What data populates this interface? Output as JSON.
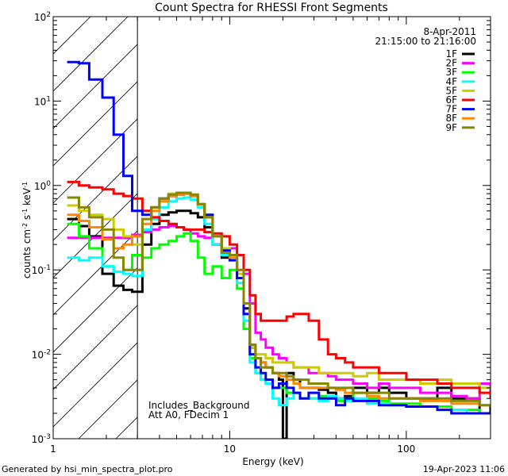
{
  "chart_data": {
    "type": "line",
    "title": "Count Spectra for RHESSI Front Segments",
    "xlabel": "Energy (keV)",
    "ylabel": "counts cm-2 s-1 keV-1",
    "xscale": "log",
    "yscale": "log",
    "xlim": [
      1,
      300
    ],
    "ylim": [
      0.001,
      100
    ],
    "x_ticks": [
      {
        "value": 1,
        "label": "1"
      },
      {
        "value": 10,
        "label": "10"
      },
      {
        "value": 100,
        "label": "100"
      }
    ],
    "y_ticks": [
      {
        "value": 0.001,
        "base": "10",
        "exp": "-3"
      },
      {
        "value": 0.01,
        "base": "10",
        "exp": "-2"
      },
      {
        "value": 0.1,
        "base": "10",
        "exp": "-1"
      },
      {
        "value": 1,
        "base": "10",
        "exp": "0"
      },
      {
        "value": 10,
        "base": "10",
        "exp": "1"
      },
      {
        "value": 100,
        "base": "10",
        "exp": "2"
      }
    ],
    "hatched_region": {
      "x_min": 1,
      "x_max": 3,
      "note": "excluded energy range (diagonal hatching)"
    },
    "legend": {
      "location": "top-right",
      "date": "8-Apr-2011",
      "time_range": "21:15:00 to 21:16:00"
    },
    "annotations": [
      "Includes_Background",
      "Att A0, FDecim 1"
    ],
    "series": [
      {
        "name": "1F",
        "color": "#000000",
        "style": "step",
        "x": [
          1.2,
          1.4,
          1.6,
          1.9,
          2.2,
          2.5,
          2.8,
          3.2,
          3.6,
          4.0,
          4.5,
          5.0,
          5.5,
          6.0,
          6.6,
          7.2,
          8.0,
          9.0,
          10.0,
          11.0,
          12.0,
          13.0,
          14.0,
          15.0,
          16.0,
          17.5,
          19.0,
          20.0,
          21.0,
          23.0,
          25.0,
          28.0,
          32.0,
          36.0,
          40.0,
          45.0,
          50.0,
          60.0,
          70.0,
          80.0,
          100.0,
          120.0,
          150.0,
          180.0,
          220.0,
          260.0,
          300.0
        ],
        "y": [
          0.4,
          0.33,
          0.25,
          0.09,
          0.065,
          0.058,
          0.055,
          0.2,
          0.35,
          0.45,
          0.48,
          0.5,
          0.5,
          0.47,
          0.42,
          0.32,
          0.2,
          0.14,
          0.15,
          0.08,
          0.035,
          0.012,
          0.009,
          0.008,
          0.007,
          0.006,
          0.005,
          0.001,
          0.006,
          0.005,
          0.004,
          0.004,
          0.0038,
          0.0035,
          0.003,
          0.0032,
          0.004,
          0.0035,
          0.004,
          0.0035,
          0.003,
          0.003,
          0.004,
          0.003,
          0.003,
          0.002,
          0.0025
        ]
      },
      {
        "name": "2F",
        "color": "#ff00ff",
        "style": "step",
        "x": [
          1.2,
          1.5,
          1.9,
          2.3,
          2.8,
          3.2,
          3.6,
          4.0,
          4.5,
          5.0,
          5.5,
          6.0,
          6.6,
          7.2,
          8.0,
          9.0,
          10.0,
          11.0,
          12.0,
          13.0,
          14.0,
          15.0,
          16.0,
          17.5,
          19.0,
          21.0,
          23.0,
          25.0,
          28.0,
          32.0,
          36.0,
          40.0,
          45.0,
          50.0,
          60.0,
          70.0,
          80.0,
          100.0,
          120.0,
          150.0,
          180.0,
          220.0,
          260.0,
          300.0
        ],
        "y": [
          0.24,
          0.24,
          0.24,
          0.24,
          0.26,
          0.28,
          0.3,
          0.32,
          0.33,
          0.32,
          0.3,
          0.27,
          0.25,
          0.24,
          0.2,
          0.17,
          0.18,
          0.15,
          0.09,
          0.04,
          0.018,
          0.015,
          0.012,
          0.01,
          0.009,
          0.008,
          0.007,
          0.007,
          0.006,
          0.006,
          0.0055,
          0.005,
          0.005,
          0.0045,
          0.004,
          0.0045,
          0.004,
          0.004,
          0.0035,
          0.0035,
          0.0032,
          0.003,
          0.0045,
          0.003
        ]
      },
      {
        "name": "3F",
        "color": "#00ff00",
        "style": "step",
        "x": [
          1.2,
          1.4,
          1.6,
          1.9,
          2.2,
          2.5,
          2.8,
          3.2,
          3.6,
          4.0,
          4.5,
          5.0,
          5.5,
          6.0,
          6.6,
          7.2,
          8.0,
          9.0,
          10.0,
          11.0,
          12.0,
          13.0,
          14.0,
          15.0,
          16.0,
          17.5,
          19.0,
          21.0,
          23.0,
          25.0,
          28.0,
          32.0,
          36.0,
          40.0,
          45.0,
          50.0,
          60.0,
          70.0,
          80.0,
          100.0,
          120.0,
          150.0,
          180.0,
          220.0,
          260.0,
          300.0
        ],
        "y": [
          0.35,
          0.25,
          0.18,
          0.11,
          0.095,
          0.1,
          0.15,
          0.14,
          0.18,
          0.2,
          0.22,
          0.25,
          0.27,
          0.22,
          0.14,
          0.09,
          0.11,
          0.08,
          0.1,
          0.06,
          0.02,
          0.009,
          0.006,
          0.005,
          0.0045,
          0.004,
          0.004,
          0.0035,
          0.0035,
          0.003,
          0.003,
          0.0032,
          0.003,
          0.0028,
          0.003,
          0.0035,
          0.003,
          0.0028,
          0.0026,
          0.0026,
          0.0024,
          0.0024,
          0.0022,
          0.0022,
          0.002,
          0.002
        ]
      },
      {
        "name": "4F",
        "color": "#00ffff",
        "style": "step",
        "x": [
          1.2,
          1.4,
          1.6,
          1.9,
          2.2,
          2.5,
          2.8,
          3.2,
          3.6,
          4.0,
          4.5,
          5.0,
          5.5,
          6.0,
          6.6,
          7.2,
          8.0,
          9.0,
          10.0,
          11.0,
          12.0,
          13.0,
          14.0,
          15.0,
          16.0,
          17.5,
          19.0,
          21.0,
          23.0,
          25.0,
          28.0,
          32.0,
          36.0,
          40.0,
          45.0,
          50.0,
          60.0,
          70.0,
          80.0,
          100.0,
          120.0,
          150.0,
          180.0,
          220.0,
          260.0,
          300.0
        ],
        "y": [
          0.14,
          0.13,
          0.14,
          0.11,
          0.095,
          0.09,
          0.085,
          0.3,
          0.4,
          0.55,
          0.65,
          0.7,
          0.72,
          0.68,
          0.55,
          0.35,
          0.2,
          0.15,
          0.13,
          0.07,
          0.025,
          0.008,
          0.006,
          0.005,
          0.0045,
          0.003,
          0.0025,
          0.003,
          0.0035,
          0.003,
          0.003,
          0.0028,
          0.0032,
          0.003,
          0.0028,
          0.003,
          0.0026,
          0.0026,
          0.0025,
          0.0024,
          0.0024,
          0.0022,
          0.0022,
          0.002,
          0.002,
          0.002
        ]
      },
      {
        "name": "5F",
        "color": "#cccc00",
        "style": "step",
        "x": [
          1.2,
          1.4,
          1.6,
          1.9,
          2.2,
          2.5,
          2.8,
          3.2,
          3.6,
          4.0,
          4.5,
          5.0,
          5.5,
          6.0,
          6.6,
          7.2,
          8.0,
          9.0,
          10.0,
          11.0,
          12.0,
          13.0,
          14.0,
          15.0,
          16.0,
          17.5,
          19.0,
          21.0,
          23.0,
          25.0,
          28.0,
          32.0,
          36.0,
          40.0,
          45.0,
          50.0,
          60.0,
          70.0,
          80.0,
          100.0,
          120.0,
          150.0,
          180.0,
          220.0,
          260.0,
          300.0
        ],
        "y": [
          0.58,
          0.5,
          0.45,
          0.4,
          0.3,
          0.25,
          0.2,
          0.4,
          0.55,
          0.7,
          0.8,
          0.82,
          0.82,
          0.75,
          0.6,
          0.42,
          0.25,
          0.18,
          0.15,
          0.09,
          0.03,
          0.012,
          0.01,
          0.01,
          0.009,
          0.008,
          0.008,
          0.008,
          0.007,
          0.007,
          0.007,
          0.006,
          0.006,
          0.006,
          0.006,
          0.0055,
          0.006,
          0.005,
          0.005,
          0.005,
          0.0045,
          0.005,
          0.0045,
          0.0045,
          0.004,
          0.004
        ]
      },
      {
        "name": "6F",
        "color": "#ff0000",
        "style": "step",
        "x": [
          1.2,
          1.4,
          1.6,
          1.9,
          2.2,
          2.5,
          2.8,
          3.2,
          3.6,
          4.0,
          4.5,
          5.0,
          5.5,
          6.0,
          6.6,
          7.2,
          8.0,
          9.0,
          10.0,
          11.0,
          12.0,
          13.0,
          14.0,
          15.0,
          16.0,
          17.5,
          19.0,
          21.0,
          23.0,
          25.0,
          28.0,
          32.0,
          36.0,
          40.0,
          45.0,
          50.0,
          60.0,
          70.0,
          80.0,
          100.0,
          120.0,
          150.0,
          180.0,
          220.0,
          260.0,
          300.0
        ],
        "y": [
          1.1,
          1.0,
          0.95,
          0.9,
          0.8,
          0.75,
          0.7,
          0.5,
          0.42,
          0.38,
          0.35,
          0.32,
          0.3,
          0.3,
          0.3,
          0.28,
          0.27,
          0.25,
          0.2,
          0.15,
          0.1,
          0.05,
          0.03,
          0.025,
          0.025,
          0.025,
          0.025,
          0.028,
          0.03,
          0.03,
          0.025,
          0.015,
          0.01,
          0.009,
          0.008,
          0.007,
          0.007,
          0.006,
          0.006,
          0.005,
          0.005,
          0.0045,
          0.004,
          0.004,
          0.0035,
          0.003
        ]
      },
      {
        "name": "7F",
        "color": "#0000ff",
        "style": "step",
        "x": [
          1.2,
          1.4,
          1.6,
          1.9,
          2.2,
          2.5,
          2.8,
          3.2,
          3.6,
          4.0,
          4.5,
          5.0,
          5.5,
          6.0,
          6.6,
          7.2,
          8.0,
          9.0,
          10.0,
          11.0,
          12.0,
          13.0,
          14.0,
          15.0,
          16.0,
          17.5,
          19.0,
          21.0,
          23.0,
          25.0,
          28.0,
          32.0,
          36.0,
          40.0,
          45.0,
          50.0,
          60.0,
          70.0,
          80.0,
          100.0,
          120.0,
          150.0,
          180.0,
          220.0,
          260.0,
          300.0
        ],
        "y": [
          29,
          28,
          18,
          11,
          4,
          1.3,
          0.5,
          0.45,
          0.55,
          0.7,
          0.75,
          0.78,
          0.8,
          0.75,
          0.6,
          0.45,
          0.25,
          0.17,
          0.13,
          0.08,
          0.03,
          0.01,
          0.007,
          0.006,
          0.005,
          0.004,
          0.0045,
          0.004,
          0.0035,
          0.003,
          0.0035,
          0.003,
          0.003,
          0.0025,
          0.003,
          0.0028,
          0.0028,
          0.0025,
          0.0025,
          0.0024,
          0.0024,
          0.0022,
          0.002,
          0.002,
          0.002,
          0.002
        ]
      },
      {
        "name": "8F",
        "color": "#ff8800",
        "style": "step",
        "x": [
          1.2,
          1.4,
          1.6,
          1.9,
          2.2,
          2.5,
          2.8,
          3.2,
          3.6,
          4.0,
          4.5,
          5.0,
          5.5,
          6.0,
          6.6,
          7.2,
          8.0,
          9.0,
          10.0,
          11.0,
          12.0,
          13.0,
          14.0,
          15.0,
          16.0,
          17.5,
          19.0,
          21.0,
          23.0,
          25.0,
          28.0,
          32.0,
          36.0,
          40.0,
          45.0,
          50.0,
          60.0,
          70.0,
          80.0,
          100.0,
          120.0,
          150.0,
          180.0,
          220.0,
          260.0,
          300.0
        ],
        "y": [
          0.45,
          0.38,
          0.32,
          0.23,
          0.18,
          0.2,
          0.25,
          0.35,
          0.5,
          0.65,
          0.75,
          0.78,
          0.8,
          0.75,
          0.6,
          0.42,
          0.25,
          0.16,
          0.14,
          0.1,
          0.04,
          0.013,
          0.009,
          0.008,
          0.007,
          0.006,
          0.0055,
          0.005,
          0.0045,
          0.004,
          0.004,
          0.004,
          0.004,
          0.0038,
          0.0035,
          0.0035,
          0.0032,
          0.003,
          0.003,
          0.003,
          0.0028,
          0.0028,
          0.0026,
          0.0026,
          0.0025,
          0.0025
        ]
      },
      {
        "name": "9F",
        "color": "#888800",
        "style": "step",
        "x": [
          1.2,
          1.4,
          1.6,
          1.9,
          2.2,
          2.5,
          2.8,
          3.2,
          3.6,
          4.0,
          4.5,
          5.0,
          5.5,
          6.0,
          6.6,
          7.2,
          8.0,
          9.0,
          10.0,
          11.0,
          12.0,
          13.0,
          14.0,
          15.0,
          16.0,
          17.5,
          19.0,
          21.0,
          23.0,
          25.0,
          28.0,
          32.0,
          36.0,
          40.0,
          45.0,
          50.0,
          60.0,
          70.0,
          80.0,
          100.0,
          120.0,
          150.0,
          180.0,
          220.0,
          260.0,
          300.0
        ],
        "y": [
          0.72,
          0.55,
          0.42,
          0.3,
          0.14,
          0.1,
          0.1,
          0.4,
          0.55,
          0.7,
          0.78,
          0.82,
          0.82,
          0.78,
          0.6,
          0.42,
          0.25,
          0.16,
          0.15,
          0.1,
          0.04,
          0.013,
          0.009,
          0.007,
          0.007,
          0.006,
          0.006,
          0.0055,
          0.005,
          0.005,
          0.0045,
          0.0045,
          0.004,
          0.004,
          0.004,
          0.0035,
          0.0035,
          0.0035,
          0.003,
          0.003,
          0.003,
          0.003,
          0.0028,
          0.0028,
          0.0025,
          0.0025
        ]
      }
    ]
  },
  "footer": {
    "generated_by": "Generated by hsi_min_spectra_plot.pro",
    "timestamp": "19-Apr-2023 11:06"
  }
}
